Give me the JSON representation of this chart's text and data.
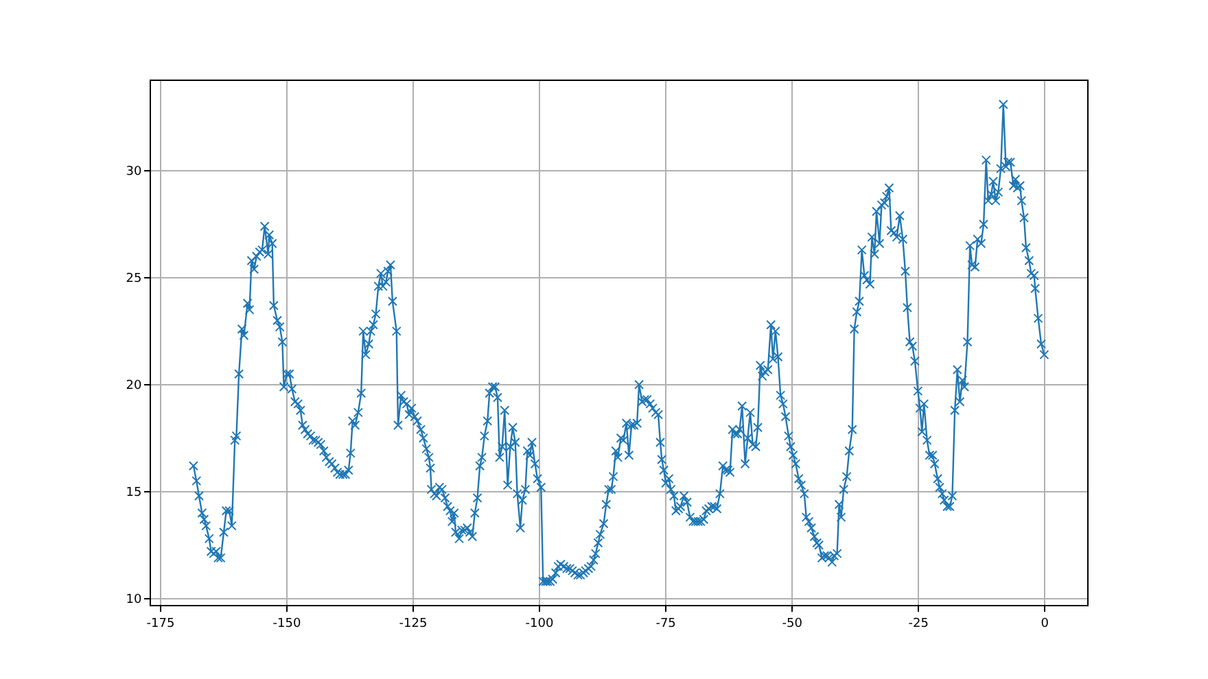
{
  "chart_data": {
    "type": "line",
    "marker": "cross",
    "line_style": "solid",
    "grid": true,
    "xlim": [
      -176.9,
      8.4
    ],
    "ylim": [
      9.7,
      34.2
    ],
    "xticks": [
      -175,
      -150,
      -125,
      -100,
      -75,
      -50,
      -25,
      0
    ],
    "yticks": [
      10,
      15,
      20,
      25,
      30
    ],
    "series": [
      {
        "color": "#1f77b4",
        "x": [
          -168.5,
          -167.9,
          -167.4,
          -166.8,
          -166.4,
          -166.0,
          -165.4,
          -165.0,
          -164.5,
          -164.0,
          -163.6,
          -163.1,
          -162.5,
          -162.0,
          -161.4,
          -160.9,
          -160.3,
          -160.0,
          -159.5,
          -158.9,
          -158.5,
          -157.8,
          -157.4,
          -157.0,
          -156.5,
          -156.0,
          -155.4,
          -154.9,
          -154.4,
          -153.7,
          -153.5,
          -152.9,
          -152.6,
          -151.9,
          -151.4,
          -150.9,
          -150.6,
          -150.0,
          -149.5,
          -149.0,
          -148.4,
          -147.8,
          -147.3,
          -146.9,
          -146.4,
          -145.9,
          -145.3,
          -144.8,
          -144.3,
          -143.8,
          -143.3,
          -142.7,
          -142.2,
          -141.6,
          -141.1,
          -140.5,
          -140.0,
          -139.5,
          -138.9,
          -138.4,
          -137.8,
          -137.4,
          -137.0,
          -136.5,
          -135.9,
          -135.3,
          -134.9,
          -134.4,
          -133.8,
          -133.4,
          -132.9,
          -132.4,
          -131.9,
          -131.4,
          -131.0,
          -130.4,
          -130.0,
          -129.5,
          -129.1,
          -128.3,
          -128.0,
          -127.4,
          -126.9,
          -126.3,
          -125.8,
          -125.3,
          -124.7,
          -124.2,
          -123.5,
          -123.0,
          -122.4,
          -121.9,
          -121.6,
          -121.4,
          -120.8,
          -120.4,
          -119.8,
          -119.3,
          -118.7,
          -118.2,
          -117.7,
          -117.3,
          -116.9,
          -116.6,
          -115.9,
          -115.4,
          -114.8,
          -114.3,
          -113.8,
          -113.3,
          -112.8,
          -112.3,
          -111.8,
          -111.4,
          -110.9,
          -110.3,
          -109.9,
          -109.3,
          -108.8,
          -108.3,
          -107.9,
          -107.4,
          -106.9,
          -106.3,
          -105.8,
          -105.3,
          -104.8,
          -104.4,
          -103.8,
          -103.4,
          -102.8,
          -102.4,
          -101.9,
          -101.5,
          -100.9,
          -100.4,
          -99.7,
          -99.3,
          -98.8,
          -98.4,
          -97.9,
          -97.4,
          -96.8,
          -96.3,
          -95.8,
          -95.2,
          -94.6,
          -94.0,
          -93.5,
          -93.0,
          -92.4,
          -91.9,
          -91.3,
          -90.9,
          -90.3,
          -89.8,
          -89.3,
          -88.9,
          -88.4,
          -88.0,
          -87.3,
          -86.8,
          -86.3,
          -85.8,
          -85.4,
          -84.9,
          -84.5,
          -83.9,
          -83.4,
          -82.8,
          -82.3,
          -81.8,
          -81.3,
          -80.7,
          -80.3,
          -79.7,
          -79.2,
          -78.7,
          -78.1,
          -77.6,
          -77.0,
          -76.5,
          -76.1,
          -75.8,
          -75.4,
          -75.0,
          -74.4,
          -74.0,
          -73.4,
          -73.0,
          -72.5,
          -72.1,
          -71.4,
          -70.8,
          -70.2,
          -69.6,
          -69.1,
          -68.6,
          -68.1,
          -67.5,
          -67.0,
          -66.5,
          -65.9,
          -65.4,
          -64.9,
          -64.3,
          -63.7,
          -63.2,
          -62.7,
          -62.3,
          -61.8,
          -61.3,
          -60.8,
          -60.4,
          -59.9,
          -59.3,
          -58.8,
          -58.3,
          -57.8,
          -57.2,
          -56.8,
          -56.3,
          -55.9,
          -55.4,
          -54.8,
          -54.2,
          -53.8,
          -53.3,
          -52.8,
          -52.3,
          -51.8,
          -51.3,
          -50.7,
          -50.3,
          -49.8,
          -49.3,
          -48.7,
          -48.2,
          -47.6,
          -47.2,
          -46.7,
          -46.2,
          -45.6,
          -45.1,
          -44.7,
          -44.1,
          -43.6,
          -43.1,
          -42.7,
          -42.1,
          -41.7,
          -41.1,
          -40.7,
          -40.3,
          -39.8,
          -39.2,
          -38.7,
          -38.1,
          -37.7,
          -37.2,
          -36.7,
          -36.2,
          -35.7,
          -35.2,
          -34.6,
          -34.2,
          -33.7,
          -33.3,
          -32.7,
          -32.3,
          -31.7,
          -31.3,
          -30.8,
          -30.4,
          -29.8,
          -29.3,
          -28.7,
          -28.1,
          -27.6,
          -27.2,
          -26.7,
          -26.2,
          -25.7,
          -25.1,
          -24.7,
          -24.3,
          -23.9,
          -23.3,
          -22.8,
          -22.2,
          -21.8,
          -21.2,
          -20.8,
          -20.3,
          -19.9,
          -19.3,
          -18.8,
          -18.3,
          -17.8,
          -17.3,
          -16.8,
          -16.3,
          -15.9,
          -15.3,
          -14.8,
          -14.4,
          -13.8,
          -13.3,
          -12.6,
          -12.1,
          -11.6,
          -11.2,
          -10.6,
          -10.2,
          -9.7,
          -9.2,
          -8.7,
          -8.2,
          -7.7,
          -7.3,
          -6.8,
          -6.2,
          -5.8,
          -5.4,
          -4.9,
          -4.6,
          -4.1,
          -3.7,
          -3.1,
          -2.7,
          -2.1,
          -1.9,
          -1.3,
          -0.7,
          -0.1
        ],
        "values": [
          16.2,
          15.5,
          14.8,
          14.0,
          13.7,
          13.4,
          12.8,
          12.2,
          12.1,
          12.2,
          11.9,
          11.9,
          13.1,
          14.1,
          14.1,
          13.4,
          17.4,
          17.6,
          20.5,
          22.6,
          22.3,
          23.8,
          23.5,
          25.8,
          25.4,
          26.0,
          26.2,
          26.3,
          27.4,
          26.1,
          27.0,
          26.6,
          23.7,
          23.0,
          22.7,
          22.0,
          19.9,
          20.5,
          20.5,
          19.8,
          19.2,
          19.1,
          18.8,
          18.1,
          17.9,
          17.7,
          17.6,
          17.4,
          17.4,
          17.3,
          17.2,
          16.9,
          16.6,
          16.4,
          16.3,
          16.1,
          15.9,
          15.8,
          15.8,
          15.8,
          16.0,
          16.8,
          18.3,
          18.1,
          18.7,
          19.6,
          22.5,
          21.4,
          21.9,
          22.5,
          22.8,
          23.3,
          24.6,
          25.2,
          24.6,
          24.8,
          25.3,
          25.6,
          23.9,
          22.5,
          18.1,
          19.5,
          19.2,
          19.1,
          18.6,
          18.9,
          18.5,
          18.3,
          17.9,
          17.5,
          17.0,
          16.6,
          16.1,
          15.1,
          14.9,
          14.8,
          15.2,
          15.1,
          14.7,
          14.3,
          14.1,
          13.6,
          14.0,
          13.1,
          12.8,
          13.2,
          13.2,
          13.3,
          13.1,
          12.9,
          14.0,
          14.7,
          16.2,
          16.6,
          17.6,
          18.3,
          19.6,
          19.9,
          19.9,
          19.4,
          16.6,
          17.1,
          18.8,
          15.3,
          17.1,
          18.0,
          17.3,
          14.9,
          13.3,
          14.6,
          15.1,
          16.9,
          16.7,
          17.3,
          16.3,
          15.6,
          15.2,
          10.8,
          10.8,
          10.8,
          10.8,
          10.9,
          11.2,
          11.5,
          11.6,
          11.5,
          11.4,
          11.4,
          11.3,
          11.2,
          11.1,
          11.1,
          11.2,
          11.3,
          11.4,
          11.5,
          11.8,
          12.1,
          12.6,
          13.0,
          13.5,
          14.4,
          15.1,
          15.1,
          15.7,
          16.9,
          16.6,
          17.5,
          17.4,
          18.2,
          16.7,
          18.1,
          18.1,
          18.2,
          20.0,
          19.2,
          19.3,
          19.3,
          19.1,
          18.9,
          18.7,
          18.6,
          17.3,
          16.5,
          16.0,
          15.4,
          15.6,
          15.1,
          14.8,
          14.1,
          14.2,
          14.3,
          14.8,
          14.5,
          13.8,
          13.6,
          13.6,
          13.6,
          13.6,
          13.7,
          14.1,
          14.2,
          14.3,
          14.3,
          14.2,
          14.9,
          16.2,
          16.0,
          16.0,
          15.9,
          17.9,
          17.7,
          17.7,
          17.9,
          19.0,
          16.3,
          17.5,
          18.7,
          17.2,
          17.1,
          18.0,
          20.9,
          20.4,
          20.6,
          20.7,
          22.8,
          21.2,
          22.5,
          21.3,
          19.5,
          19.1,
          18.5,
          17.6,
          17.1,
          16.7,
          16.3,
          15.6,
          15.3,
          14.9,
          13.8,
          13.6,
          13.3,
          12.9,
          12.6,
          12.5,
          11.9,
          12.0,
          12.0,
          11.9,
          11.7,
          12.0,
          12.1,
          14.4,
          13.8,
          15.1,
          15.7,
          16.9,
          17.9,
          22.6,
          23.4,
          23.9,
          26.3,
          25.1,
          24.9,
          24.7,
          26.9,
          26.1,
          28.1,
          26.6,
          28.4,
          28.5,
          28.8,
          29.2,
          27.2,
          27.1,
          26.9,
          27.9,
          26.8,
          25.3,
          23.6,
          22.0,
          21.8,
          21.1,
          19.7,
          18.9,
          17.8,
          19.1,
          17.4,
          16.7,
          16.7,
          16.3,
          15.6,
          15.2,
          14.9,
          14.6,
          14.3,
          14.3,
          14.8,
          18.8,
          20.7,
          19.2,
          20.2,
          19.9,
          22.0,
          26.5,
          25.6,
          25.5,
          26.8,
          26.6,
          27.5,
          30.5,
          28.6,
          28.9,
          29.5,
          28.6,
          29.0,
          30.1,
          33.1,
          30.2,
          30.4,
          30.4,
          29.3,
          29.6,
          29.2,
          29.3,
          28.6,
          27.8,
          26.4,
          25.8,
          25.2,
          25.1,
          24.5,
          23.1,
          21.9,
          21.4
        ]
      }
    ]
  }
}
